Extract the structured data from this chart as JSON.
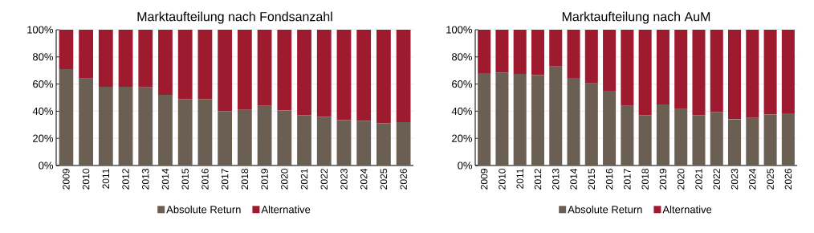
{
  "chart_data": [
    {
      "type": "bar",
      "title": "Marktaufteilung nach Fondsanzahl",
      "stacked": true,
      "grid": "y",
      "legend": "bottom",
      "categories": [
        "2009",
        "2010",
        "2011",
        "2012",
        "2013",
        "2014",
        "2015",
        "2016",
        "2017",
        "2018",
        "2019",
        "2020",
        "2021",
        "2022",
        "2023",
        "2024",
        "2025",
        "2026"
      ],
      "ylim": [
        0,
        100
      ],
      "yticks": [
        {
          "value": 0,
          "label": "0%"
        },
        {
          "value": 20,
          "label": "20%"
        },
        {
          "value": 40,
          "label": "40%"
        },
        {
          "value": 60,
          "label": "60%"
        },
        {
          "value": 80,
          "label": "80%"
        },
        {
          "value": 100,
          "label": "100%"
        }
      ],
      "series": [
        {
          "name": "Absolute Return",
          "color": "#6b5e52",
          "values": [
            71,
            64,
            58,
            58,
            57.5,
            52,
            49,
            49,
            40,
            41,
            44,
            40.5,
            37,
            36,
            33.5,
            33,
            31,
            32
          ]
        },
        {
          "name": "Alternative",
          "color": "#9e1b2f",
          "values": [
            29,
            36,
            42,
            42,
            42.5,
            48,
            51,
            51,
            60,
            59,
            56,
            59.5,
            63,
            64,
            66.5,
            67,
            69,
            68
          ]
        }
      ]
    },
    {
      "type": "bar",
      "title": "Marktaufteilung nach AuM",
      "stacked": true,
      "grid": "y",
      "legend": "bottom",
      "categories": [
        "2009",
        "2010",
        "2011",
        "2012",
        "2013",
        "2014",
        "2015",
        "2016",
        "2017",
        "2018",
        "2019",
        "2020",
        "2021",
        "2022",
        "2023",
        "2024",
        "2025",
        "2026"
      ],
      "ylim": [
        0,
        100
      ],
      "yticks": [
        {
          "value": 0,
          "label": "0%"
        },
        {
          "value": 20,
          "label": "20%"
        },
        {
          "value": 40,
          "label": "40%"
        },
        {
          "value": 60,
          "label": "60%"
        },
        {
          "value": 80,
          "label": "80%"
        },
        {
          "value": 100,
          "label": "100%"
        }
      ],
      "series": [
        {
          "name": "Absolute Return",
          "color": "#6b5e52",
          "values": [
            68,
            68.5,
            67.5,
            66.5,
            73,
            64.5,
            60.5,
            55,
            44,
            37,
            45,
            41.5,
            37,
            39.5,
            34,
            35,
            37.5,
            38.5
          ]
        },
        {
          "name": "Alternative",
          "color": "#9e1b2f",
          "values": [
            32,
            31.5,
            32.5,
            33.5,
            27,
            35.5,
            39.5,
            45,
            56,
            63,
            55,
            58.5,
            63,
            60.5,
            66,
            65,
            62.5,
            61.5
          ]
        }
      ]
    }
  ]
}
